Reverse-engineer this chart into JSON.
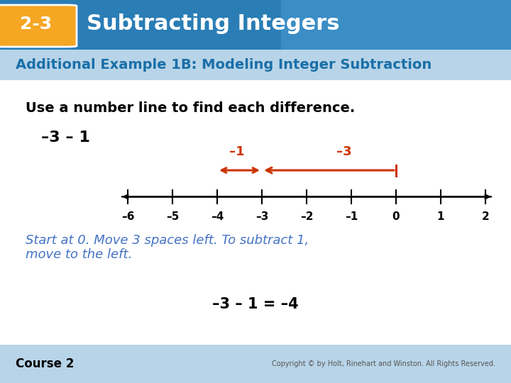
{
  "title_badge": "2-3",
  "title_text": "Subtracting Integers",
  "header_bg": "#2a7db5",
  "header_text_color": "#ffffff",
  "badge_bg": "#f5a623",
  "subtitle": "Additional Example 1B: Modeling Integer Subtraction",
  "subtitle_color": "#1a6fa8",
  "body_bg": "#ffffff",
  "instruction": "Use a number line to find each difference.",
  "problem": "–3 – 1",
  "number_line_min": -6,
  "number_line_max": 2,
  "number_line_labels": [
    "–6",
    "–5",
    "–4",
    "–3",
    "–2",
    "–1",
    "0",
    "1",
    "2"
  ],
  "arrow1_label": "–3",
  "arrow2_label": "–1",
  "arrow_color": "#cc3300",
  "explanation": "Start at 0. Move 3 spaces left. To subtract 1,\nmove to the left.",
  "explanation_color": "#4472c4",
  "answer": "–3 – 1 = –4",
  "answer_color": "#000000",
  "footer_text": "Course 2",
  "copyright_text": "Copyright © by Holt, Rinehart and Winston. All Rights Reserved.",
  "teal_bg": "#b8d4e8"
}
